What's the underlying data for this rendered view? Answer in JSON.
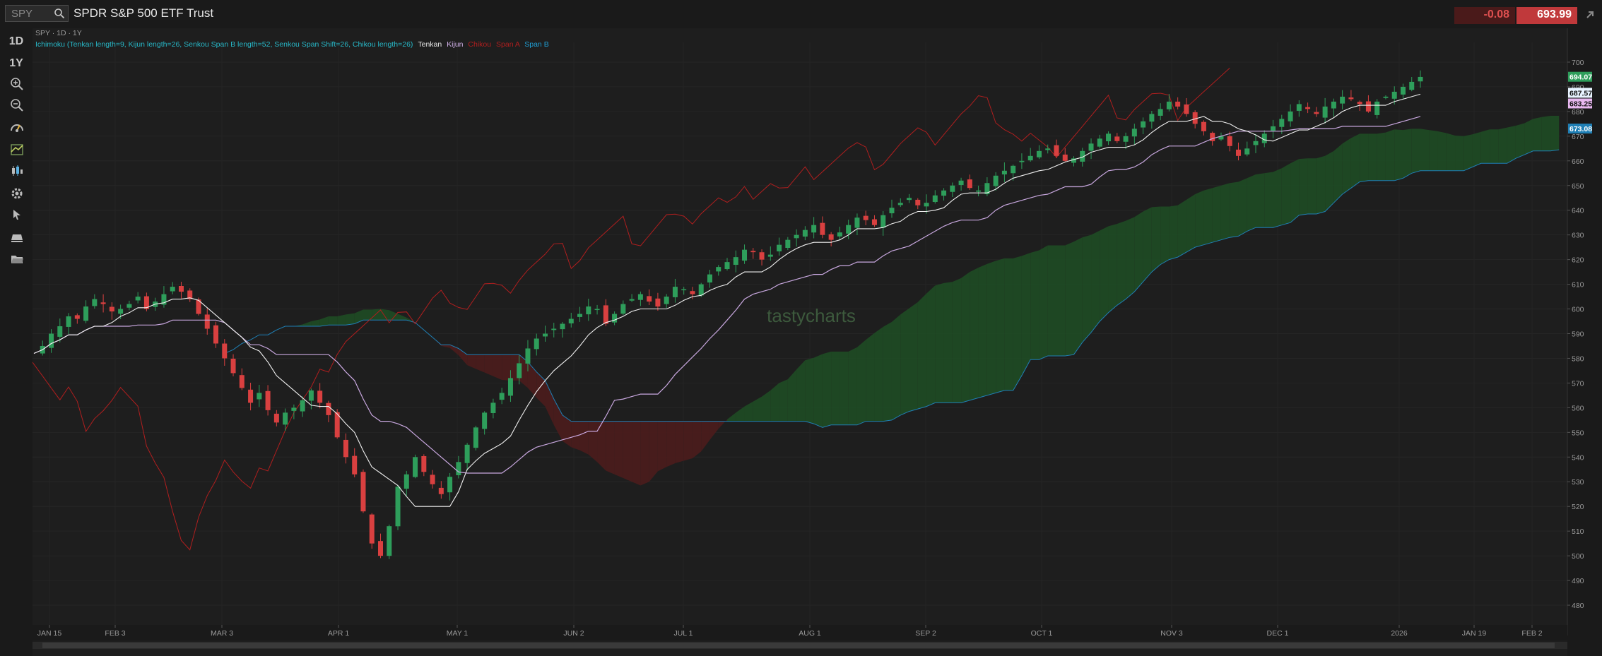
{
  "header": {
    "search_placeholder": "SPY",
    "title": "SPDR S&P 500 ETF Trust",
    "change": "-0.08",
    "last": "693.99"
  },
  "toolbar": {
    "timeframes": [
      "1D",
      "1Y"
    ],
    "tools": [
      "zoom-in-icon",
      "zoom-out-icon",
      "studies-icon",
      "ichimoku-icon",
      "candles-icon",
      "settings-icon",
      "cursor-icon",
      "layers-icon",
      "folder-icon"
    ]
  },
  "legend": {
    "symbol_line": "SPY · 1D · 1Y",
    "study": "Ichimoku (Tenkan length=9, Kijun length=26, Senkou Span B length=52, Senkou Span Shift=26, Chikou length=26)",
    "tenkan": "Tenkan",
    "kijun": "Kijun",
    "chikou": "Chikou",
    "spana": "Span A",
    "spanb": "Span B"
  },
  "watermark": "tastycharts",
  "colors": {
    "up": "#2e9e5b",
    "down": "#d94040",
    "tenkan": "#f0f0f0",
    "kijun": "#c9a8e0",
    "chikou": "#b01e1e",
    "spanb": "#1f7fb5",
    "cloud_bull": "#1f4a24",
    "cloud_bear": "#4a1c1c"
  },
  "chart_data": {
    "type": "candlestick",
    "symbol": "SPY",
    "interval": "1D",
    "range": "1Y",
    "ylim": [
      472,
      708
    ],
    "y_ticks": [
      700,
      690,
      680,
      670,
      660,
      650,
      640,
      630,
      620,
      610,
      600,
      590,
      580,
      570,
      560,
      550,
      540,
      530,
      520,
      510,
      500,
      490,
      480
    ],
    "x_ticks": [
      "JAN 15",
      "FEB 3",
      "MAR 3",
      "APR 1",
      "MAY 1",
      "JUN 2",
      "JUL 1",
      "AUG 1",
      "SEP 2",
      "OCT 1",
      "NOV 3",
      "DEC 1",
      "2026",
      "JAN 19",
      "FEB 2"
    ],
    "price_labels": [
      {
        "value": "694.07",
        "series": "Last"
      },
      {
        "value": "687.57",
        "series": "Tenkan"
      },
      {
        "value": "683.25",
        "series": "Kijun"
      },
      {
        "value": "673.08",
        "series": "Span B"
      }
    ],
    "close_path": [
      582,
      585,
      590,
      593,
      597,
      596,
      601,
      604,
      602,
      599,
      600,
      602,
      605,
      600,
      603,
      606,
      609,
      607,
      604,
      598,
      592,
      586,
      580,
      574,
      568,
      562,
      566,
      559,
      554,
      558,
      560,
      563,
      567,
      562,
      557,
      548,
      540,
      533,
      518,
      505,
      500,
      512,
      528,
      533,
      540,
      534,
      529,
      525,
      532,
      538,
      545,
      552,
      558,
      562,
      566,
      572,
      578,
      584,
      588,
      590,
      592,
      594,
      596,
      598,
      601,
      600,
      594,
      598,
      602,
      604,
      606,
      603,
      601,
      605,
      609,
      608,
      606,
      610,
      614,
      617,
      619,
      621,
      624,
      623,
      620,
      622,
      626,
      628,
      630,
      632,
      634,
      630,
      628,
      631,
      634,
      637,
      636,
      634,
      638,
      641,
      643,
      645,
      642,
      643,
      646,
      648,
      650,
      652,
      649,
      648,
      651,
      654,
      656,
      658,
      660,
      662,
      664,
      665,
      662,
      660,
      661,
      664,
      667,
      669,
      671,
      668,
      670,
      673,
      676,
      679,
      681,
      684,
      682,
      679,
      675,
      672,
      668,
      670,
      666,
      662,
      665,
      668,
      671,
      674,
      677,
      680,
      683,
      681,
      679,
      682,
      684,
      686,
      685,
      683,
      680,
      684,
      686,
      688,
      690,
      692,
      694
    ]
  }
}
